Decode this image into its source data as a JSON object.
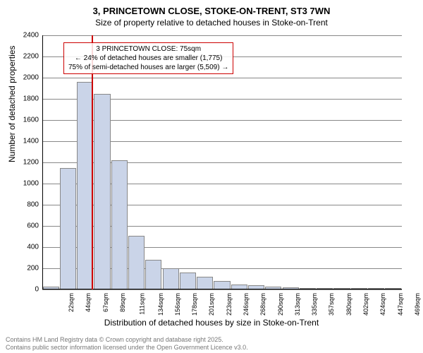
{
  "title1": "3, PRINCETOWN CLOSE, STOKE-ON-TRENT, ST3 7WN",
  "title2": "Size of property relative to detached houses in Stoke-on-Trent",
  "yaxis_title": "Number of detached properties",
  "xaxis_title": "Distribution of detached houses by size in Stoke-on-Trent",
  "footer1": "Contains HM Land Registry data © Crown copyright and database right 2025.",
  "footer2": "Contains public sector information licensed under the Open Government Licence v3.0.",
  "chart": {
    "ylim": [
      0,
      2400
    ],
    "ytick_step": 200,
    "bar_fill": "#cad4e8",
    "bar_border": "#888888",
    "grid_color": "#888888",
    "marker_color": "#cc0000",
    "annotation_border": "#cc0000",
    "x_labels": [
      "22sqm",
      "44sqm",
      "67sqm",
      "89sqm",
      "111sqm",
      "134sqm",
      "156sqm",
      "178sqm",
      "201sqm",
      "223sqm",
      "246sqm",
      "268sqm",
      "290sqm",
      "313sqm",
      "335sqm",
      "357sqm",
      "380sqm",
      "402sqm",
      "424sqm",
      "447sqm",
      "469sqm"
    ],
    "values": [
      30,
      1150,
      1960,
      1850,
      1220,
      510,
      280,
      200,
      160,
      120,
      80,
      50,
      40,
      30,
      20,
      15,
      10,
      8,
      5,
      5,
      3
    ],
    "marker_index": 2.4,
    "annotation": {
      "line1": "3 PRINCETOWN CLOSE: 75sqm",
      "line2": "← 24% of detached houses are smaller (1,775)",
      "line3": "75% of semi-detached houses are larger (5,509) →"
    }
  }
}
